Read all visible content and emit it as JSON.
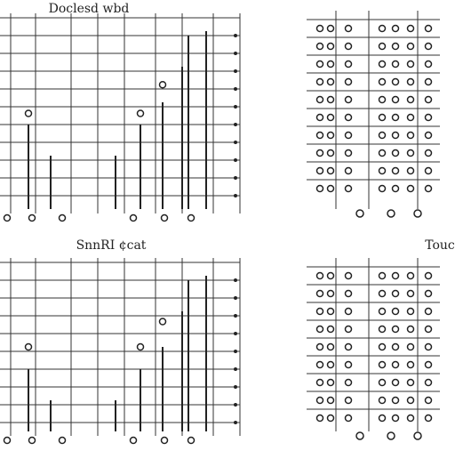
{
  "header": {
    "title": "Doclesd wbd"
  },
  "panels": [
    {
      "title": "SnnRI ¢cat"
    },
    {
      "title": "Touc"
    }
  ]
}
